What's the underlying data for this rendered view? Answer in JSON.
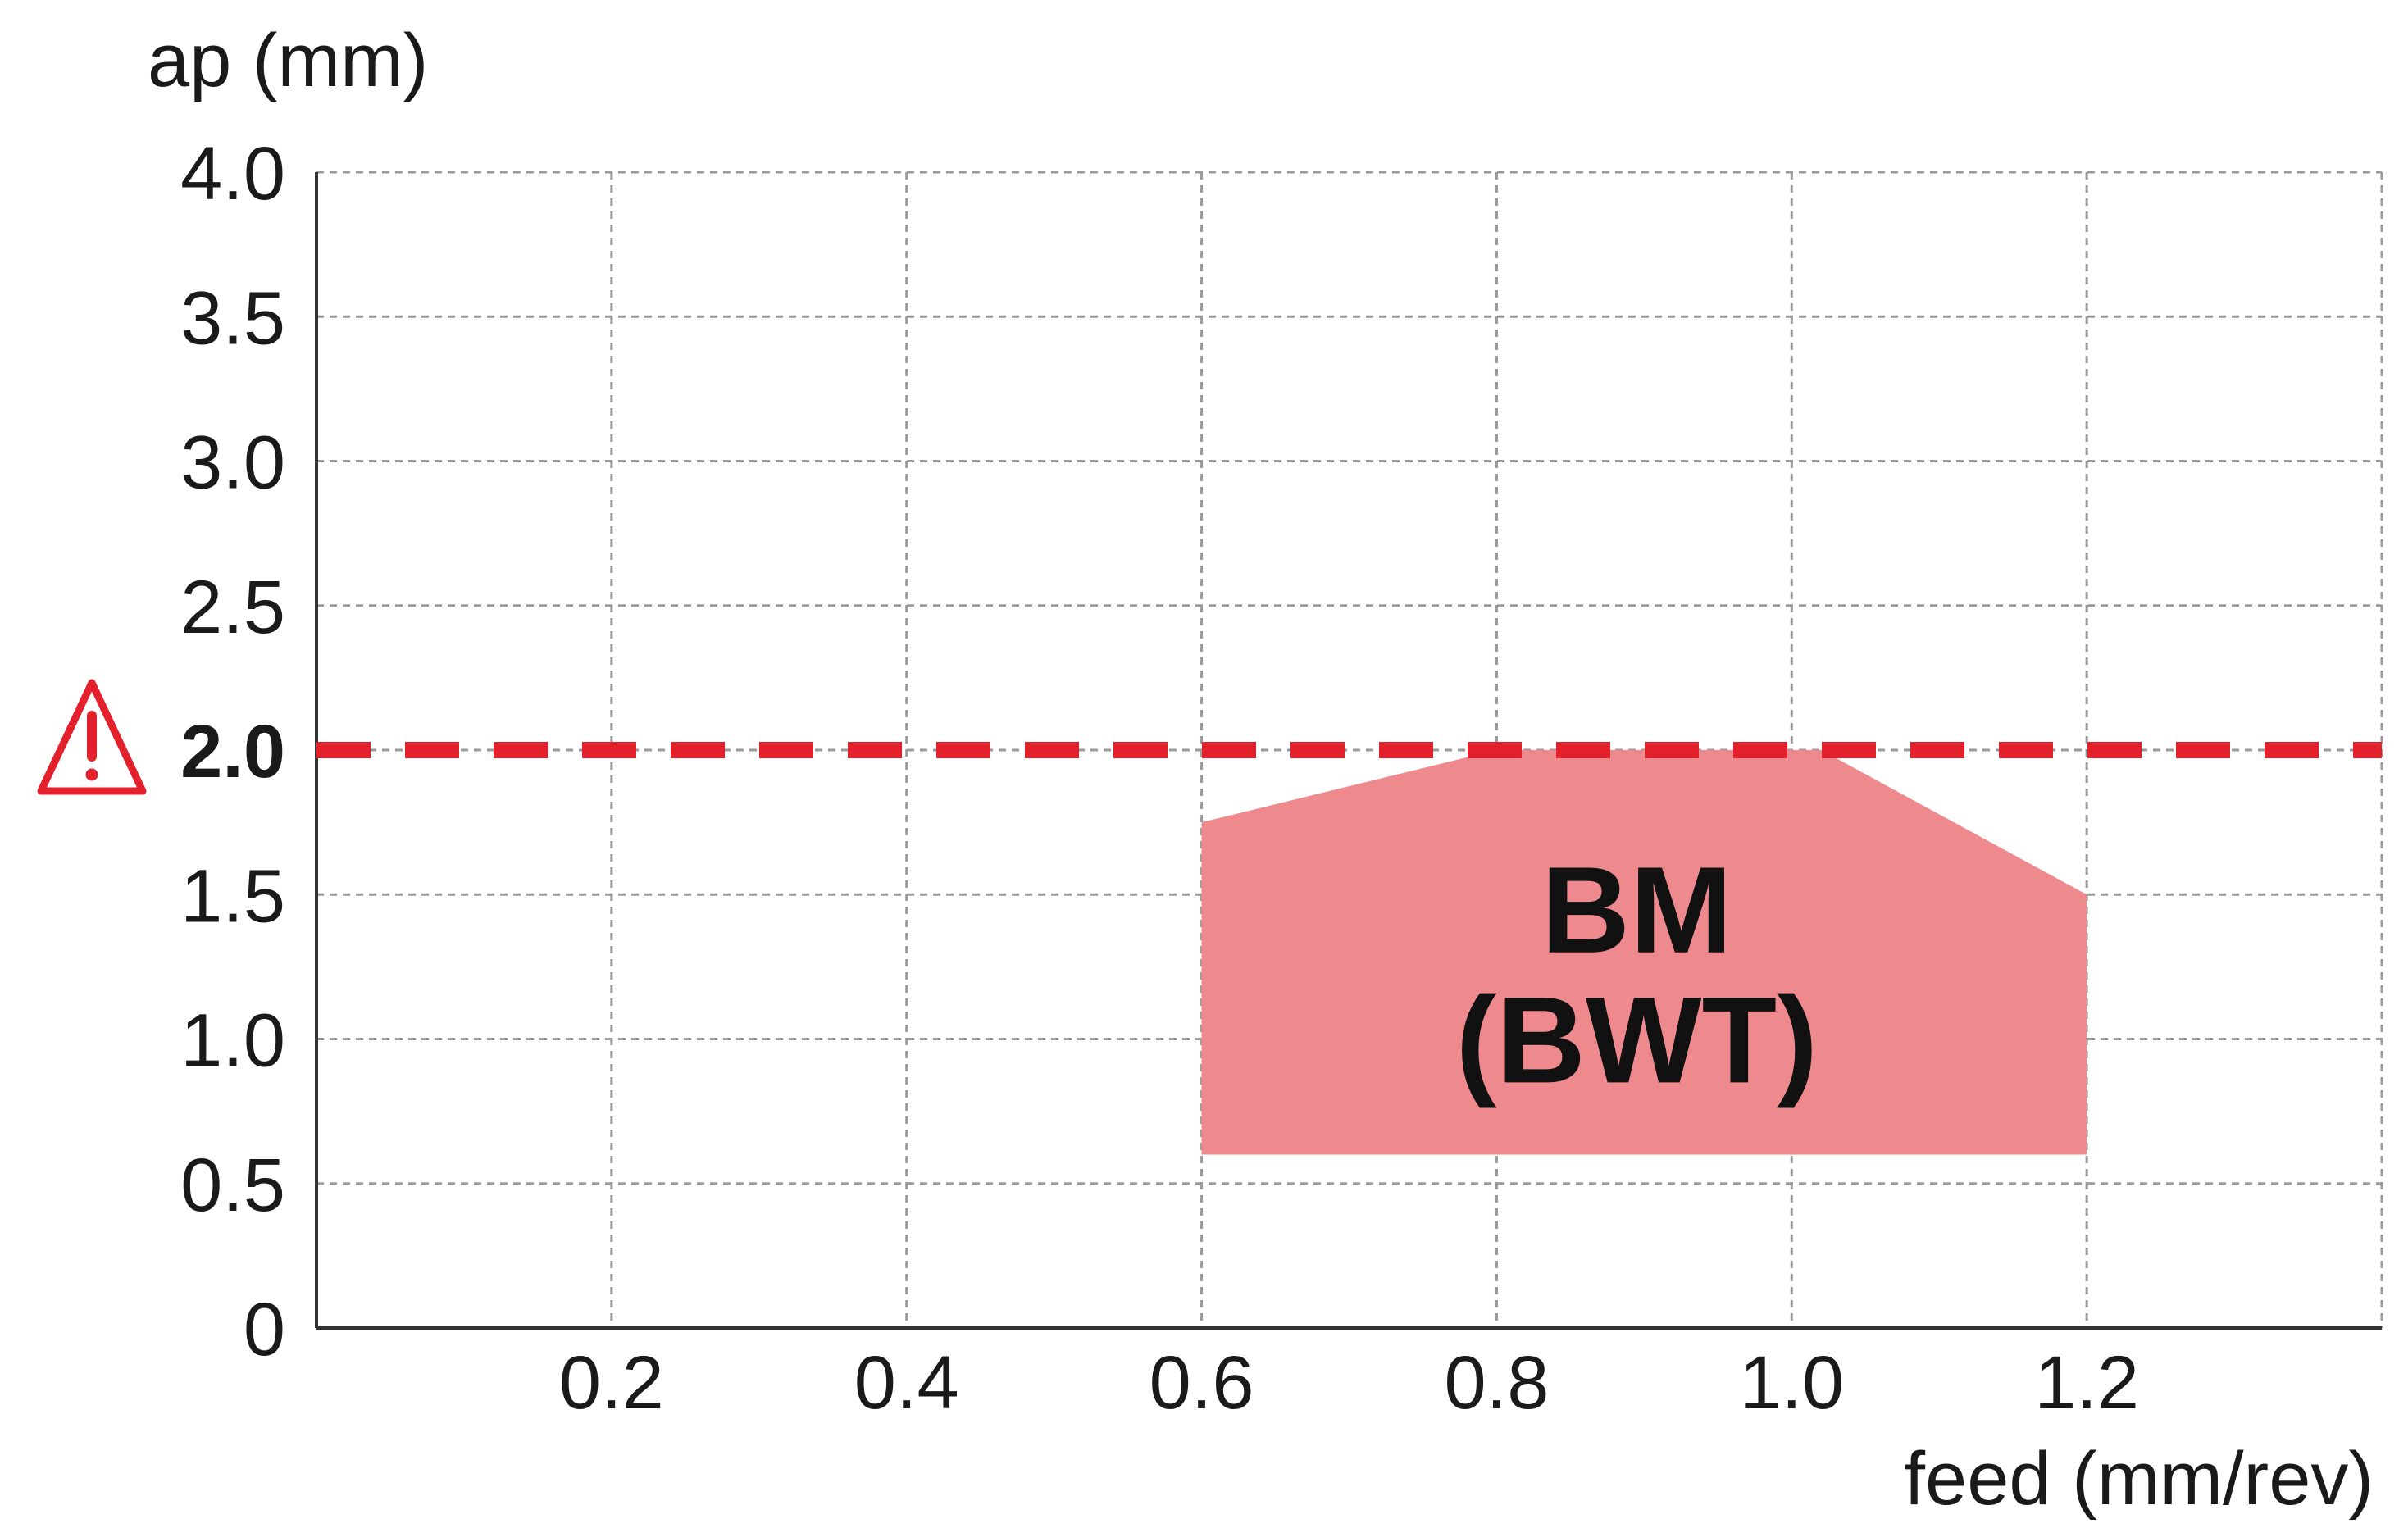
{
  "chart_data": {
    "type": "area",
    "xlabel": "feed (mm/rev)",
    "ylabel": "ap (mm)",
    "xlim": [
      0,
      1.4
    ],
    "ylim": [
      0,
      4.0
    ],
    "x_ticks": [
      "0.2",
      "0.4",
      "0.6",
      "0.8",
      "1.0",
      "1.2"
    ],
    "x_tick_values": [
      0.2,
      0.4,
      0.6,
      0.8,
      1.0,
      1.2
    ],
    "y_ticks": [
      "0",
      "0.5",
      "1.0",
      "1.5",
      "2.0",
      "2.5",
      "3.0",
      "3.5",
      "4.0"
    ],
    "y_tick_values": [
      0,
      0.5,
      1.0,
      1.5,
      2.0,
      2.5,
      3.0,
      3.5,
      4.0
    ],
    "grid": true,
    "grid_x": [
      0.2,
      0.4,
      0.6,
      0.8,
      1.0,
      1.2,
      1.4
    ],
    "grid_y": [
      0.5,
      1.0,
      1.5,
      2.0,
      2.5,
      3.0,
      3.5,
      4.0
    ],
    "region": {
      "label_line1": "BM",
      "label_line2": "(BWT)",
      "color": "#ee8a8e",
      "polygon": [
        [
          0.6,
          0.6
        ],
        [
          0.6,
          1.75
        ],
        [
          0.8,
          2.0
        ],
        [
          1.02,
          2.0
        ],
        [
          1.2,
          1.5
        ],
        [
          1.2,
          0.6
        ]
      ]
    },
    "limit_line": {
      "y": 2.0,
      "label": "2.0",
      "color": "#e3212d",
      "style": "dashed",
      "icon": "warning-triangle-icon"
    }
  }
}
